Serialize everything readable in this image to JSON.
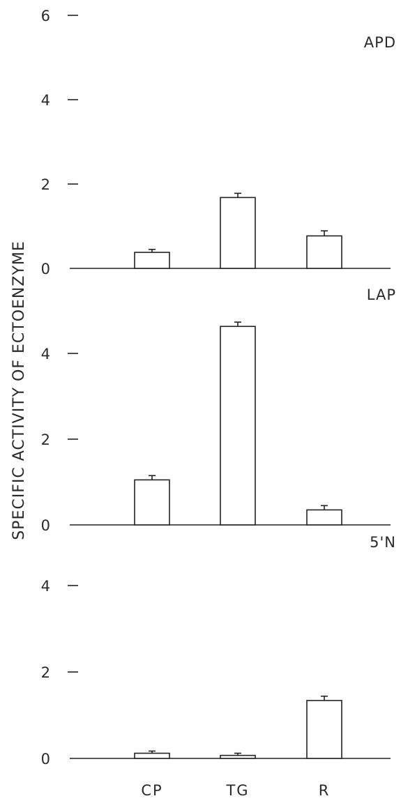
{
  "chart_data": {
    "type": "bar",
    "ylabel": "SPECIFIC ACTIVITY OF ECTOENZYME",
    "categories": [
      "CP",
      "TG",
      "R"
    ],
    "panels": [
      {
        "name": "APD",
        "ylim": [
          0,
          6
        ],
        "yticks": [
          "0",
          "2",
          "4",
          "6"
        ],
        "values": [
          0.38,
          1.68,
          0.77
        ],
        "errors": [
          0.07,
          0.1,
          0.12
        ]
      },
      {
        "name": "LAP",
        "ylim": [
          0,
          5
        ],
        "yticks": [
          "0",
          "2",
          "4"
        ],
        "values": [
          1.05,
          4.63,
          0.35
        ],
        "errors": [
          0.1,
          0.1,
          0.1
        ]
      },
      {
        "name": "5'N",
        "ylim": [
          0,
          5
        ],
        "yticks": [
          "0",
          "2",
          "4"
        ],
        "values": [
          0.12,
          0.07,
          1.34
        ],
        "errors": [
          0.05,
          0.05,
          0.1
        ]
      }
    ]
  }
}
